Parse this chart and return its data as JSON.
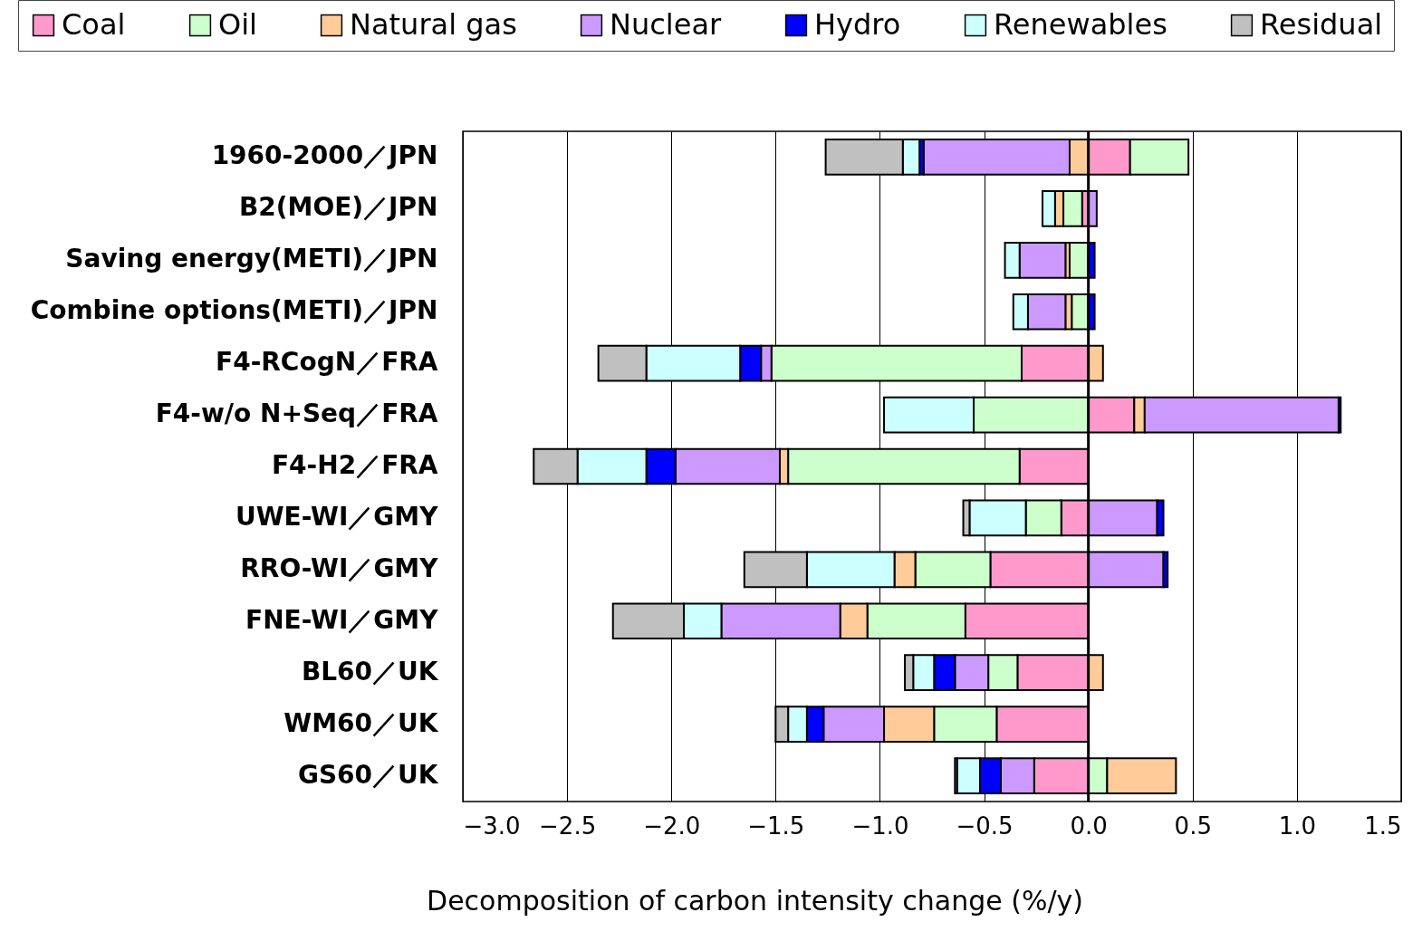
{
  "chart_data": {
    "type": "bar",
    "orientation": "horizontal",
    "stacked": true,
    "xlabel": "Decomposition of carbon intensity change (%/y)",
    "categories": [
      "1960-2000／JPN",
      "B2(MOE)／JPN",
      "Saving energy(METI)／JPN",
      "Combine options(METI)／JPN",
      "F4-RCogN／FRA",
      "F4-w/o N+Seq／FRA",
      "F4-H2／FRA",
      "UWE-WI／GMY",
      "RRO-WI／GMY",
      "FNE-WI／GMY",
      "BL60／UK",
      "WM60／UK",
      "GS60／UK"
    ],
    "series": [
      {
        "name": "Coal",
        "color": "#ff99cc",
        "values": [
          0.2,
          -0.03,
          null,
          null,
          -0.32,
          0.22,
          -0.33,
          -0.13,
          -0.47,
          -0.59,
          -0.34,
          -0.44,
          -0.26
        ]
      },
      {
        "name": "Oil",
        "color": "#ccffcc",
        "values": [
          0.28,
          -0.09,
          -0.09,
          -0.08,
          -1.2,
          -0.55,
          -1.11,
          -0.17,
          -0.36,
          -0.47,
          -0.14,
          -0.3,
          0.09
        ]
      },
      {
        "name": "Natural gas",
        "color": "#ffcc99",
        "values": [
          -0.09,
          -0.04,
          -0.02,
          -0.03,
          0.07,
          0.05,
          -0.04,
          null,
          -0.1,
          -0.13,
          0.07,
          -0.24,
          0.33
        ]
      },
      {
        "name": "Nuclear",
        "color": "#cc99ff",
        "values": [
          -0.7,
          0.04,
          -0.22,
          -0.18,
          -0.05,
          0.93,
          -0.5,
          0.33,
          0.36,
          -0.57,
          -0.16,
          -0.29,
          -0.16
        ]
      },
      {
        "name": "Hydro",
        "color": "#0000ff",
        "values": [
          -0.02,
          null,
          0.03,
          0.03,
          -0.1,
          0.01,
          -0.14,
          0.03,
          0.02,
          null,
          -0.1,
          -0.08,
          -0.1
        ]
      },
      {
        "name": "Renewables",
        "color": "#ccffff",
        "values": [
          -0.08,
          -0.06,
          -0.07,
          -0.07,
          -0.45,
          -0.43,
          -0.33,
          -0.27,
          -0.42,
          -0.18,
          -0.1,
          -0.09,
          -0.11
        ]
      },
      {
        "name": "Residual",
        "color": "#c0c0c0",
        "values": [
          -0.37,
          null,
          null,
          null,
          -0.23,
          null,
          -0.21,
          -0.03,
          -0.3,
          -0.34,
          -0.04,
          -0.06,
          -0.01
        ]
      }
    ],
    "xlim": [
      -3.0,
      1.5
    ],
    "xticks": [
      {
        "value": -3.0,
        "label": "−3.0"
      },
      {
        "value": -2.5,
        "label": "−2.5"
      },
      {
        "value": -2.0,
        "label": "−2.0"
      },
      {
        "value": -1.5,
        "label": "−1.5"
      },
      {
        "value": -1.0,
        "label": "−1.0"
      },
      {
        "value": -0.5,
        "label": "−0.5"
      },
      {
        "value": 0,
        "label": "0.0"
      },
      {
        "value": 0.5,
        "label": "0.5"
      },
      {
        "value": 1.0,
        "label": "1.0"
      },
      {
        "value": 1.5,
        "label": "1.5"
      }
    ],
    "ref_lines": [
      {
        "axis": "x",
        "value": 0,
        "color": "#000000"
      }
    ],
    "grid": "x",
    "legend": "top"
  }
}
